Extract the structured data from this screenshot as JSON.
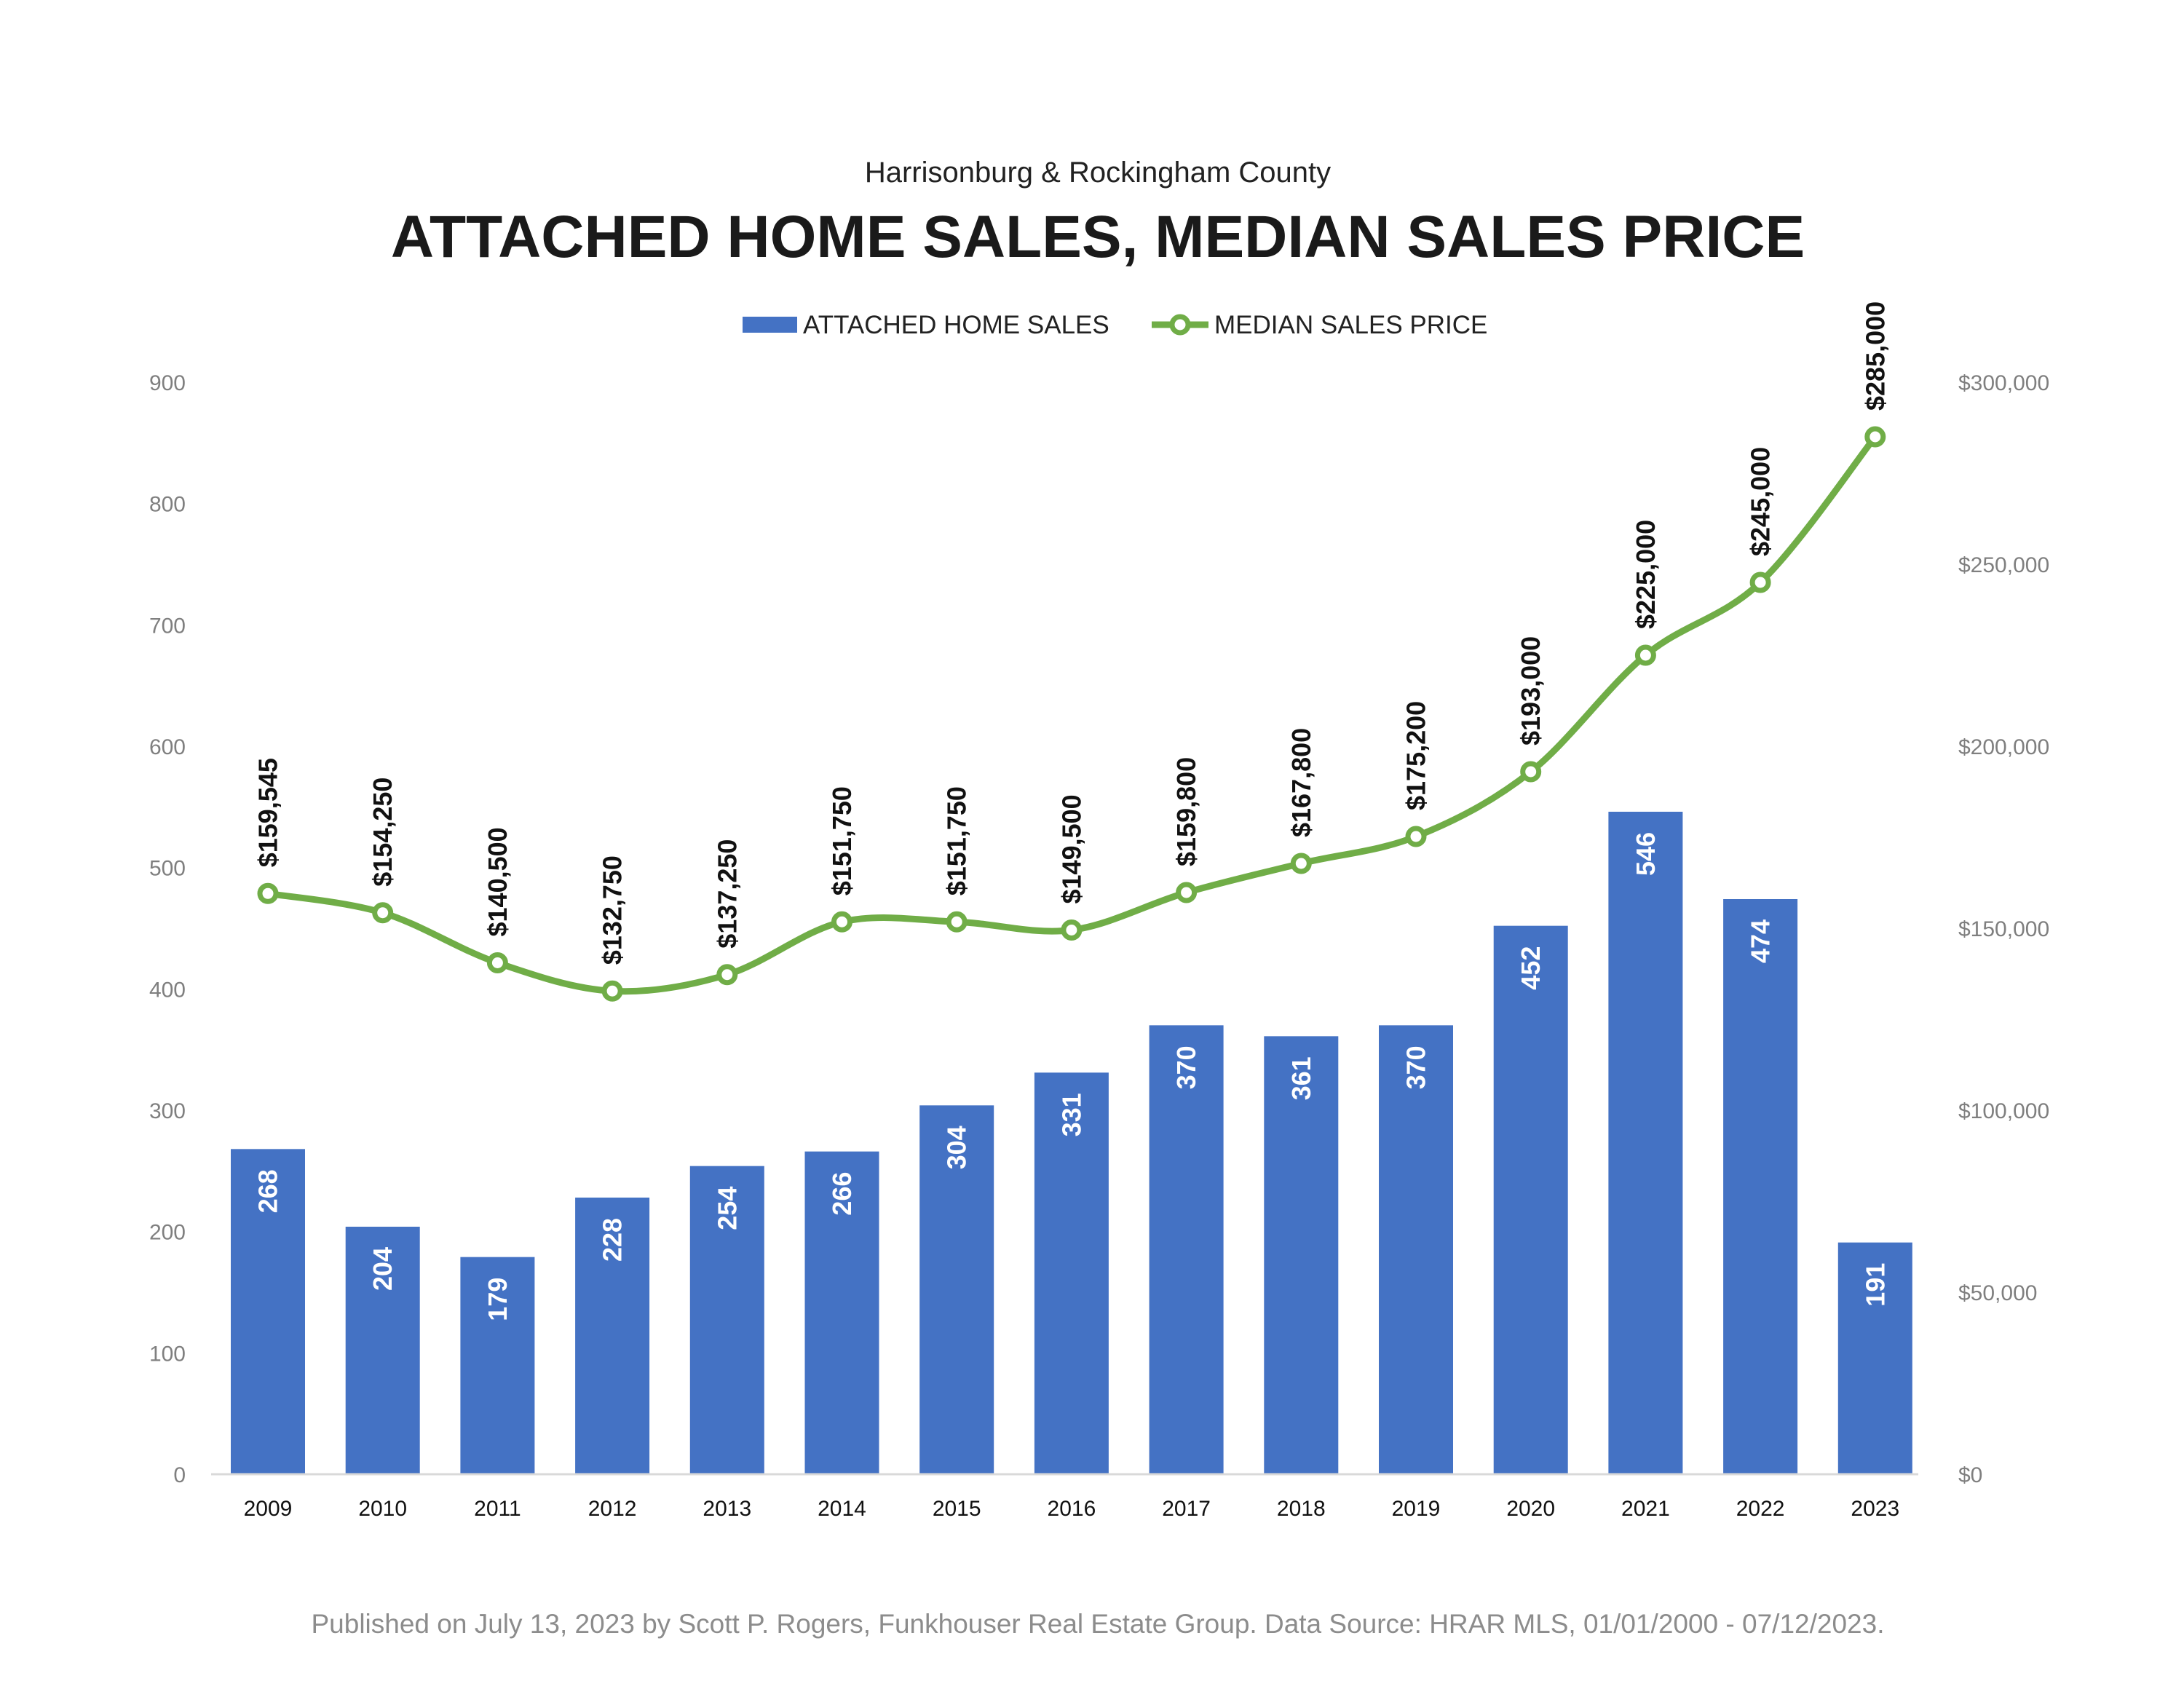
{
  "header": {
    "subtitle": "Harrisonburg & Rockingham County",
    "title": "ATTACHED HOME SALES, MEDIAN SALES PRICE"
  },
  "footer": {
    "text": "Published on July 13, 2023 by Scott P. Rogers, Funkhouser Real Estate Group. Data Source: HRAR MLS, 01/01/2000 - 07/12/2023."
  },
  "colors": {
    "bar": "#4472c4",
    "line": "#70ad47",
    "axis_text": "#7f7f7f"
  },
  "chart_data": {
    "type": "bar",
    "title": "ATTACHED HOME SALES, MEDIAN SALES PRICE",
    "subtitle": "Harrisonburg & Rockingham County",
    "legend_position": "top-center",
    "grid": false,
    "categories": [
      "2009",
      "2010",
      "2011",
      "2012",
      "2013",
      "2014",
      "2015",
      "2016",
      "2017",
      "2018",
      "2019",
      "2020",
      "2021",
      "2022",
      "2023"
    ],
    "series": [
      {
        "name": "ATTACHED HOME SALES",
        "type": "bar",
        "axis": "left",
        "values": [
          268,
          204,
          179,
          228,
          254,
          266,
          304,
          331,
          370,
          361,
          370,
          452,
          546,
          474,
          191
        ],
        "labels": [
          "268",
          "204",
          "179",
          "228",
          "254",
          "266",
          "304",
          "331",
          "370",
          "361",
          "370",
          "452",
          "546",
          "474",
          "191"
        ]
      },
      {
        "name": "MEDIAN SALES PRICE",
        "type": "line",
        "axis": "right",
        "values": [
          159545,
          154250,
          140500,
          132750,
          137250,
          151750,
          151750,
          149500,
          159800,
          167800,
          175200,
          193000,
          225000,
          245000,
          285000
        ],
        "labels": [
          "$159,545",
          "$154,250",
          "$140,500",
          "$132,750",
          "$137,250",
          "$151,750",
          "$151,750",
          "$149,500",
          "$159,800",
          "$167,800",
          "$175,200",
          "$193,000",
          "$225,000",
          "$245,000",
          "$285,000"
        ]
      }
    ],
    "y_left": {
      "ylim": [
        0,
        900
      ],
      "ticks": [
        0,
        100,
        200,
        300,
        400,
        500,
        600,
        700,
        800,
        900
      ],
      "tick_labels": [
        "0",
        "100",
        "200",
        "300",
        "400",
        "500",
        "600",
        "700",
        "800",
        "900"
      ]
    },
    "y_right": {
      "ylim": [
        0,
        300000
      ],
      "ticks": [
        0,
        50000,
        100000,
        150000,
        200000,
        250000,
        300000
      ],
      "tick_labels": [
        "$0",
        "$50,000",
        "$100,000",
        "$150,000",
        "$200,000",
        "$250,000",
        "$300,000"
      ]
    }
  }
}
